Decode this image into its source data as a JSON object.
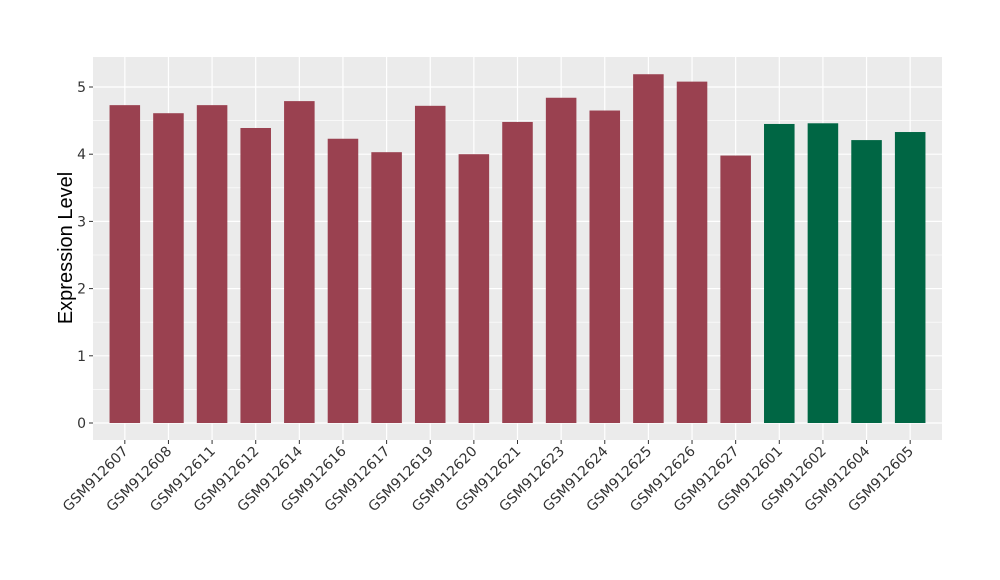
{
  "chart_data": {
    "type": "bar",
    "ylabel": "Expression Level",
    "xlabel": "",
    "ylim": [
      0,
      5.4
    ],
    "y_ticks": [
      "0",
      "1",
      "2",
      "3",
      "4",
      "5"
    ],
    "grid": true,
    "legend": "none",
    "colors": {
      "group1": "#9a4150",
      "group2": "#006644",
      "panel": "#ebebeb",
      "gridline": "#ffffff"
    },
    "categories": [
      "GSM912607",
      "GSM912608",
      "GSM912611",
      "GSM912612",
      "GSM912614",
      "GSM912616",
      "GSM912617",
      "GSM912619",
      "GSM912620",
      "GSM912621",
      "GSM912623",
      "GSM912624",
      "GSM912625",
      "GSM912626",
      "GSM912627",
      "GSM912601",
      "GSM912602",
      "GSM912604",
      "GSM912605"
    ],
    "values": [
      4.73,
      4.61,
      4.73,
      4.39,
      4.79,
      4.23,
      4.03,
      4.72,
      4.0,
      4.48,
      4.84,
      4.65,
      5.19,
      5.08,
      3.98,
      4.45,
      4.46,
      4.21,
      4.33
    ],
    "groups": [
      1,
      1,
      1,
      1,
      1,
      1,
      1,
      1,
      1,
      1,
      1,
      1,
      1,
      1,
      1,
      2,
      2,
      2,
      2
    ]
  }
}
